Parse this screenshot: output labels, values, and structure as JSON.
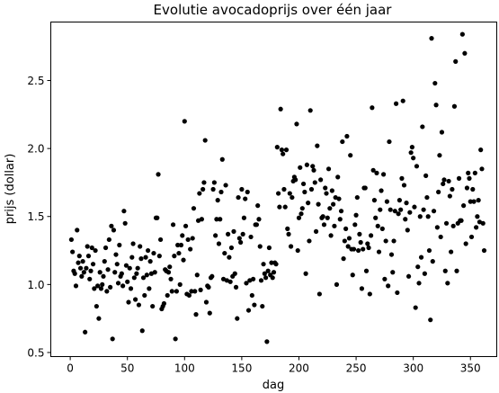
{
  "chart_data": {
    "type": "scatter",
    "title": "Evolutie avocadoprijs over één jaar",
    "xlabel": "dag",
    "ylabel": "prijs (dollar)",
    "xlim": [
      -17,
      373
    ],
    "ylim": [
      0.47,
      2.93
    ],
    "xticks": [
      0,
      50,
      100,
      150,
      200,
      250,
      300,
      350
    ],
    "yticks": [
      0.5,
      1.0,
      1.5,
      2.0,
      2.5
    ],
    "xtick_labels": [
      "0",
      "50",
      "100",
      "150",
      "200",
      "250",
      "300",
      "350"
    ],
    "ytick_labels": [
      "0.5",
      "1.0",
      "1.5",
      "2.0",
      "2.5"
    ],
    "grid": false,
    "marker_color": "#000000",
    "points": [
      [
        1,
        1.33
      ],
      [
        2,
        1.24
      ],
      [
        3,
        1.1
      ],
      [
        4,
        1.08
      ],
      [
        5,
        0.99
      ],
      [
        6,
        1.4
      ],
      [
        7,
        1.16
      ],
      [
        8,
        1.21
      ],
      [
        9,
        1.12
      ],
      [
        10,
        1.06
      ],
      [
        11,
        1.17
      ],
      [
        12,
        1.09
      ],
      [
        13,
        0.65
      ],
      [
        14,
        1.12
      ],
      [
        15,
        1.28
      ],
      [
        16,
        1.21
      ],
      [
        17,
        1.04
      ],
      [
        18,
        1.1
      ],
      [
        19,
        1.27
      ],
      [
        20,
        1.15
      ],
      [
        21,
        0.97
      ],
      [
        22,
        1.25
      ],
      [
        23,
        0.84
      ],
      [
        24,
        0.99
      ],
      [
        25,
        0.75
      ],
      [
        26,
        1.09
      ],
      [
        27,
        0.97
      ],
      [
        28,
        1.0
      ],
      [
        29,
        1.06
      ],
      [
        30,
        1.17
      ],
      [
        31,
        1.27
      ],
      [
        32,
        0.95
      ],
      [
        33,
        1.11
      ],
      [
        34,
        1.33
      ],
      [
        35,
        0.98
      ],
      [
        36,
        1.43
      ],
      [
        37,
        0.6
      ],
      [
        38,
        1.4
      ],
      [
        39,
        1.09
      ],
      [
        40,
        1.22
      ],
      [
        41,
        1.15
      ],
      [
        42,
        1.01
      ],
      [
        43,
        1.29
      ],
      [
        44,
        1.06
      ],
      [
        45,
        1.08
      ],
      [
        46,
        0.99
      ],
      [
        47,
        1.54
      ],
      [
        48,
        1.45
      ],
      [
        49,
        1.14
      ],
      [
        50,
        1.02
      ],
      [
        51,
        0.87
      ],
      [
        52,
        1.12
      ],
      [
        53,
        0.97
      ],
      [
        54,
        1.2
      ],
      [
        55,
        1.3
      ],
      [
        56,
        1.05
      ],
      [
        57,
        0.89
      ],
      [
        58,
        1.08
      ],
      [
        59,
        1.12
      ],
      [
        60,
        0.85
      ],
      [
        61,
        1.28
      ],
      [
        62,
        1.19
      ],
      [
        63,
        0.66
      ],
      [
        64,
        1.05
      ],
      [
        65,
        0.92
      ],
      [
        66,
        1.2
      ],
      [
        67,
        1.07
      ],
      [
        68,
        1.25
      ],
      [
        69,
        0.97
      ],
      [
        70,
        1.17
      ],
      [
        71,
        1.08
      ],
      [
        72,
        0.84
      ],
      [
        73,
        1.23
      ],
      [
        74,
        1.09
      ],
      [
        75,
        1.49
      ],
      [
        76,
        1.49
      ],
      [
        77,
        1.81
      ],
      [
        78,
        1.21
      ],
      [
        79,
        1.33
      ],
      [
        80,
        0.82
      ],
      [
        81,
        0.84
      ],
      [
        82,
        0.86
      ],
      [
        83,
        1.11
      ],
      [
        84,
        1.1
      ],
      [
        85,
        0.92
      ],
      [
        86,
        1.09
      ],
      [
        87,
        1.13
      ],
      [
        88,
        1.04
      ],
      [
        89,
        0.95
      ],
      [
        90,
        1.44
      ],
      [
        91,
        1.21
      ],
      [
        92,
        0.6
      ],
      [
        93,
        0.95
      ],
      [
        94,
        1.29
      ],
      [
        95,
        1.23
      ],
      [
        96,
        1.0
      ],
      [
        97,
        1.29
      ],
      [
        98,
        1.36
      ],
      [
        99,
        1.18
      ],
      [
        100,
        2.2
      ],
      [
        101,
        1.43
      ],
      [
        102,
        0.93
      ],
      [
        103,
        1.33
      ],
      [
        104,
        0.92
      ],
      [
        105,
        1.26
      ],
      [
        106,
        0.95
      ],
      [
        107,
        1.34
      ],
      [
        108,
        1.56
      ],
      [
        109,
        0.95
      ],
      [
        110,
        0.78
      ],
      [
        111,
        1.07
      ],
      [
        112,
        1.47
      ],
      [
        113,
        1.67
      ],
      [
        114,
        0.96
      ],
      [
        115,
        1.48
      ],
      [
        116,
        1.7
      ],
      [
        117,
        1.75
      ],
      [
        118,
        2.06
      ],
      [
        119,
        0.87
      ],
      [
        120,
        0.99
      ],
      [
        121,
        0.98
      ],
      [
        122,
        0.79
      ],
      [
        123,
        1.05
      ],
      [
        124,
        1.06
      ],
      [
        125,
        1.7
      ],
      [
        126,
        1.75
      ],
      [
        127,
        1.36
      ],
      [
        128,
        1.48
      ],
      [
        129,
        1.62
      ],
      [
        130,
        1.3
      ],
      [
        131,
        1.48
      ],
      [
        132,
        1.68
      ],
      [
        133,
        1.92
      ],
      [
        134,
        1.04
      ],
      [
        135,
        1.23
      ],
      [
        136,
        1.73
      ],
      [
        137,
        1.03
      ],
      [
        138,
        1.37
      ],
      [
        139,
        1.2
      ],
      [
        140,
        1.02
      ],
      [
        141,
        1.27
      ],
      [
        142,
        1.06
      ],
      [
        143,
        1.39
      ],
      [
        144,
        1.08
      ],
      [
        145,
        0.98
      ],
      [
        146,
        0.75
      ],
      [
        147,
        1.64
      ],
      [
        148,
        1.34
      ],
      [
        149,
        1.31
      ],
      [
        150,
        1.7
      ],
      [
        151,
        1.37
      ],
      [
        152,
        1.49
      ],
      [
        153,
        1.63
      ],
      [
        154,
        1.01
      ],
      [
        155,
        1.68
      ],
      [
        156,
        0.81
      ],
      [
        157,
        1.03
      ],
      [
        158,
        1.35
      ],
      [
        159,
        0.92
      ],
      [
        160,
        1.04
      ],
      [
        161,
        0.85
      ],
      [
        162,
        1.44
      ],
      [
        163,
        1.44
      ],
      [
        164,
        1.58
      ],
      [
        165,
        1.48
      ],
      [
        166,
        1.28
      ],
      [
        167,
        1.03
      ],
      [
        168,
        0.84
      ],
      [
        169,
        1.15
      ],
      [
        170,
        1.08
      ],
      [
        171,
        1.05
      ],
      [
        172,
        0.58
      ],
      [
        173,
        1.1
      ],
      [
        174,
        1.27
      ],
      [
        175,
        1.07
      ],
      [
        176,
        1.16
      ],
      [
        177,
        1.05
      ],
      [
        178,
        1.09
      ],
      [
        179,
        1.16
      ],
      [
        180,
        1.15
      ],
      [
        181,
        2.01
      ],
      [
        182,
        1.67
      ],
      [
        183,
        1.57
      ],
      [
        184,
        2.29
      ],
      [
        185,
        1.99
      ],
      [
        186,
        1.96
      ],
      [
        187,
        1.7
      ],
      [
        188,
        1.57
      ],
      [
        189,
        1.99
      ],
      [
        190,
        1.41
      ],
      [
        191,
        1.37
      ],
      [
        192,
        1.67
      ],
      [
        193,
        1.28
      ],
      [
        194,
        1.64
      ],
      [
        195,
        1.76
      ],
      [
        196,
        1.79
      ],
      [
        197,
        1.77
      ],
      [
        198,
        2.18
      ],
      [
        199,
        1.25
      ],
      [
        200,
        1.49
      ],
      [
        201,
        1.86
      ],
      [
        202,
        1.52
      ],
      [
        203,
        1.56
      ],
      [
        204,
        1.74
      ],
      [
        205,
        1.68
      ],
      [
        206,
        1.08
      ],
      [
        207,
        1.88
      ],
      [
        208,
        1.6
      ],
      [
        209,
        1.32
      ],
      [
        210,
        2.28
      ],
      [
        211,
        1.7
      ],
      [
        212,
        1.87
      ],
      [
        213,
        1.84
      ],
      [
        214,
        1.75
      ],
      [
        215,
        1.39
      ],
      [
        216,
        2.02
      ],
      [
        217,
        1.59
      ],
      [
        218,
        0.93
      ],
      [
        219,
        1.77
      ],
      [
        220,
        1.49
      ],
      [
        221,
        1.5
      ],
      [
        222,
        1.44
      ],
      [
        223,
        1.71
      ],
      [
        224,
        1.67
      ],
      [
        225,
        1.49
      ],
      [
        226,
        1.85
      ],
      [
        227,
        1.56
      ],
      [
        228,
        1.36
      ],
      [
        229,
        1.69
      ],
      [
        230,
        1.59
      ],
      [
        231,
        1.43
      ],
      [
        232,
        1.64
      ],
      [
        233,
        1.0
      ],
      [
        234,
        1.79
      ],
      [
        235,
        1.63
      ],
      [
        236,
        1.48
      ],
      [
        237,
        1.54
      ],
      [
        238,
        2.05
      ],
      [
        239,
        1.19
      ],
      [
        240,
        1.32
      ],
      [
        241,
        1.41
      ],
      [
        242,
        2.09
      ],
      [
        243,
        1.28
      ],
      [
        244,
        1.34
      ],
      [
        245,
        1.95
      ],
      [
        246,
        1.26
      ],
      [
        247,
        1.07
      ],
      [
        248,
        1.26
      ],
      [
        249,
        1.44
      ],
      [
        250,
        1.51
      ],
      [
        251,
        1.64
      ],
      [
        252,
        1.25
      ],
      [
        253,
        1.37
      ],
      [
        254,
        1.31
      ],
      [
        255,
        0.97
      ],
      [
        256,
        1.26
      ],
      [
        257,
        1.71
      ],
      [
        258,
        1.71
      ],
      [
        259,
        1.1
      ],
      [
        260,
        1.3
      ],
      [
        261,
        1.27
      ],
      [
        262,
        0.93
      ],
      [
        263,
        1.36
      ],
      [
        264,
        2.3
      ],
      [
        265,
        1.84
      ],
      [
        266,
        1.62
      ],
      [
        267,
        1.49
      ],
      [
        268,
        1.82
      ],
      [
        269,
        1.43
      ],
      [
        270,
        1.24
      ],
      [
        271,
        1.55
      ],
      [
        272,
        1.69
      ],
      [
        273,
        1.41
      ],
      [
        274,
        1.81
      ],
      [
        275,
        1.04
      ],
      [
        276,
        1.32
      ],
      [
        277,
        1.61
      ],
      [
        278,
        0.99
      ],
      [
        279,
        2.05
      ],
      [
        280,
        1.55
      ],
      [
        281,
        1.22
      ],
      [
        282,
        1.09
      ],
      [
        283,
        1.32
      ],
      [
        284,
        1.54
      ],
      [
        285,
        2.33
      ],
      [
        286,
        0.94
      ],
      [
        287,
        1.52
      ],
      [
        288,
        1.62
      ],
      [
        289,
        1.55
      ],
      [
        290,
        1.78
      ],
      [
        291,
        2.35
      ],
      [
        292,
        1.73
      ],
      [
        293,
        1.48
      ],
      [
        294,
        1.6
      ],
      [
        295,
        1.4
      ],
      [
        296,
        1.06
      ],
      [
        297,
        1.53
      ],
      [
        298,
        1.97
      ],
      [
        299,
        2.01
      ],
      [
        300,
        1.93
      ],
      [
        301,
        1.57
      ],
      [
        302,
        0.83
      ],
      [
        303,
        1.87
      ],
      [
        304,
        1.13
      ],
      [
        305,
        1.01
      ],
      [
        306,
        1.5
      ],
      [
        307,
        1.2
      ],
      [
        308,
        2.16
      ],
      [
        309,
        1.55
      ],
      [
        310,
        1.08
      ],
      [
        311,
        1.8
      ],
      [
        312,
        1.64
      ],
      [
        313,
        1.5
      ],
      [
        314,
        1.25
      ],
      [
        315,
        0.74
      ],
      [
        316,
        2.81
      ],
      [
        317,
        1.17
      ],
      [
        318,
        1.54
      ],
      [
        319,
        2.48
      ],
      [
        320,
        2.32
      ],
      [
        321,
        1.42
      ],
      [
        322,
        1.68
      ],
      [
        323,
        1.95
      ],
      [
        324,
        1.35
      ],
      [
        325,
        2.12
      ],
      [
        326,
        1.74
      ],
      [
        327,
        1.77
      ],
      [
        328,
        1.1
      ],
      [
        329,
        1.45
      ],
      [
        330,
        1.01
      ],
      [
        331,
        1.76
      ],
      [
        332,
        1.65
      ],
      [
        333,
        1.24
      ],
      [
        334,
        1.7
      ],
      [
        335,
        1.43
      ],
      [
        336,
        2.31
      ],
      [
        337,
        2.64
      ],
      [
        338,
        1.1
      ],
      [
        339,
        1.45
      ],
      [
        340,
        1.78
      ],
      [
        341,
        1.47
      ],
      [
        342,
        1.47
      ],
      [
        343,
        2.84
      ],
      [
        344,
        1.58
      ],
      [
        345,
        2.7
      ],
      [
        346,
        1.3
      ],
      [
        347,
        1.71
      ],
      [
        348,
        1.82
      ],
      [
        349,
        1.78
      ],
      [
        350,
        1.61
      ],
      [
        351,
        1.35
      ],
      [
        352,
        1.7
      ],
      [
        353,
        1.61
      ],
      [
        354,
        1.82
      ],
      [
        355,
        1.42
      ],
      [
        356,
        1.5
      ],
      [
        357,
        1.62
      ],
      [
        358,
        1.46
      ],
      [
        359,
        1.99
      ],
      [
        360,
        1.85
      ],
      [
        361,
        1.45
      ],
      [
        362,
        1.25
      ]
    ]
  }
}
